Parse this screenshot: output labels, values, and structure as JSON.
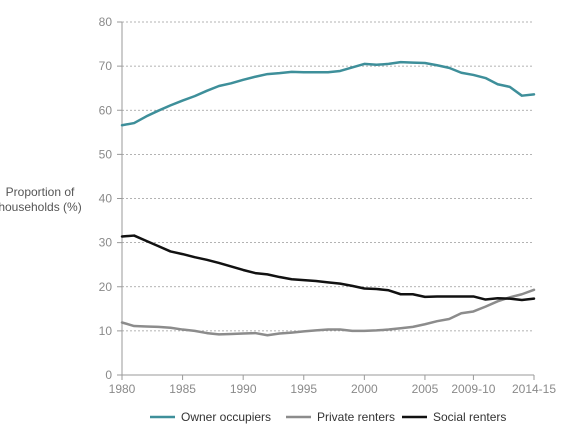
{
  "chart_data": {
    "type": "line",
    "title": "",
    "ylabel_lines": [
      "Proportion of",
      "households (%)"
    ],
    "xlabel": "",
    "ylim": [
      0,
      80
    ],
    "yticks": [
      0,
      10,
      20,
      30,
      40,
      50,
      60,
      70,
      80
    ],
    "xlim": [
      1980,
      2014
    ],
    "xtick_labels": [
      {
        "x": 1980,
        "label": "1980"
      },
      {
        "x": 1985,
        "label": "1985"
      },
      {
        "x": 1990,
        "label": "1990"
      },
      {
        "x": 1995,
        "label": "1995"
      },
      {
        "x": 2000,
        "label": "2000"
      },
      {
        "x": 2005,
        "label": "2005"
      },
      {
        "x": 2009,
        "label": "2009-10"
      },
      {
        "x": 2014,
        "label": "2014-15"
      }
    ],
    "grid": "horizontal",
    "legend_position": "bottom",
    "x": [
      1980,
      1981,
      1982,
      1983,
      1984,
      1985,
      1986,
      1987,
      1988,
      1989,
      1990,
      1991,
      1992,
      1993,
      1994,
      1995,
      1996,
      1997,
      1998,
      1999,
      2000,
      2001,
      2002,
      2003,
      2004,
      2005,
      2006,
      2007,
      2008,
      2009,
      2010,
      2011,
      2012,
      2013,
      2014
    ],
    "series": [
      {
        "name": "Owner occupiers",
        "color": "#3e8f9a",
        "values": [
          56.6,
          57.1,
          58.6,
          59.9,
          61.1,
          62.2,
          63.2,
          64.4,
          65.5,
          66.1,
          66.9,
          67.6,
          68.2,
          68.4,
          68.7,
          68.6,
          68.6,
          68.6,
          68.9,
          69.7,
          70.5,
          70.3,
          70.5,
          70.9,
          70.8,
          70.7,
          70.2,
          69.6,
          68.5,
          68.0,
          67.3,
          65.9,
          65.3,
          63.3,
          63.6
        ]
      },
      {
        "name": "Private renters",
        "color": "#8c8c8c",
        "values": [
          11.9,
          11.1,
          11.0,
          10.9,
          10.7,
          10.3,
          10.0,
          9.5,
          9.2,
          9.3,
          9.4,
          9.5,
          9.0,
          9.4,
          9.6,
          9.9,
          10.1,
          10.3,
          10.3,
          10.0,
          10.0,
          10.1,
          10.3,
          10.6,
          10.9,
          11.5,
          12.2,
          12.7,
          14.0,
          14.4,
          15.5,
          16.7,
          17.6,
          18.3,
          19.3
        ]
      },
      {
        "name": "Social renters",
        "color": "#111111",
        "values": [
          31.4,
          31.6,
          30.4,
          29.2,
          28.0,
          27.4,
          26.7,
          26.1,
          25.4,
          24.6,
          23.8,
          23.1,
          22.8,
          22.2,
          21.7,
          21.5,
          21.3,
          21.0,
          20.7,
          20.2,
          19.6,
          19.5,
          19.2,
          18.3,
          18.3,
          17.7,
          17.8,
          17.8,
          17.8,
          17.8,
          17.1,
          17.4,
          17.3,
          17.0,
          17.3
        ]
      }
    ]
  }
}
